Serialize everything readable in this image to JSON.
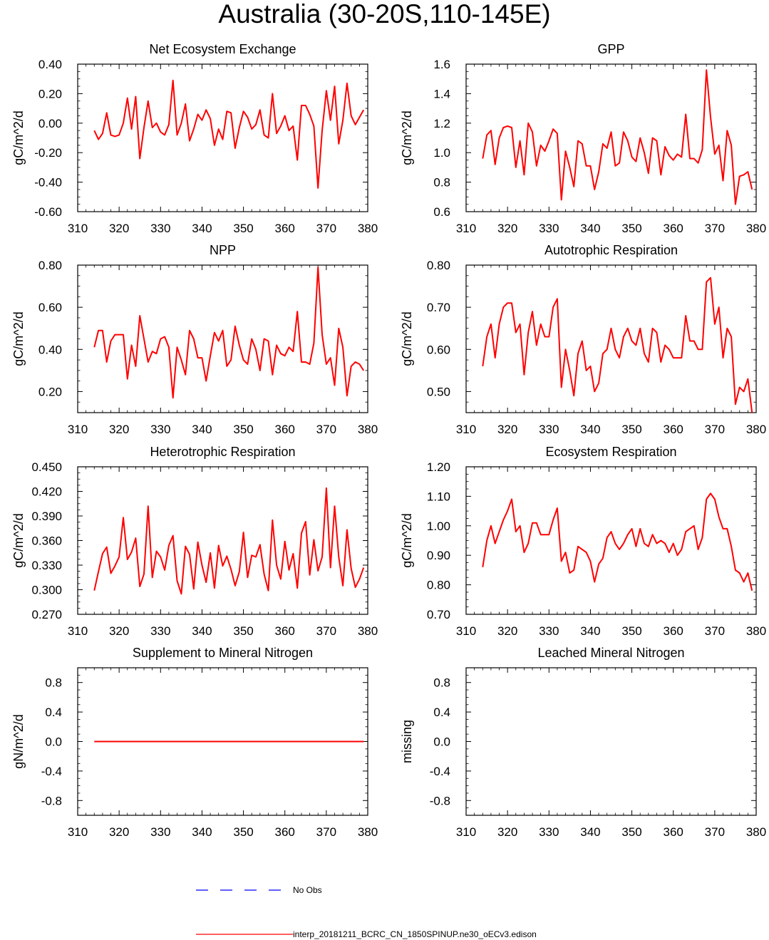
{
  "page_title": "Australia (30-20S,110-145E)",
  "colors": {
    "model": "#ff0000",
    "obs": "#0000ff",
    "axis": "#000000"
  },
  "chart_data": [
    {
      "type": "line",
      "title": "Net Ecosystem Exchange",
      "ylabel": "gC/m^2/d",
      "xlim": [
        310,
        380
      ],
      "ylim": [
        -0.6,
        0.4
      ],
      "yticks": [
        "-0.60",
        "-0.40",
        "-0.20",
        "0.00",
        "0.20",
        "0.40"
      ],
      "xticks": [
        "310",
        "320",
        "330",
        "340",
        "350",
        "360",
        "370",
        "380"
      ],
      "x_start": 314,
      "series": [
        {
          "name": "interp_20181211_BCRC_CN_1850SPINUP.ne30_oECv3.edison",
          "values": [
            -0.05,
            -0.11,
            -0.07,
            0.07,
            -0.08,
            -0.09,
            -0.08,
            0.0,
            0.17,
            -0.04,
            0.18,
            -0.24,
            -0.03,
            0.15,
            -0.03,
            0.0,
            -0.06,
            -0.08,
            -0.01,
            0.29,
            -0.08,
            0.0,
            0.13,
            -0.12,
            -0.04,
            0.06,
            0.02,
            0.09,
            0.03,
            -0.15,
            -0.04,
            -0.11,
            0.08,
            0.07,
            -0.17,
            -0.03,
            0.08,
            0.04,
            -0.04,
            -0.01,
            0.09,
            -0.08,
            -0.1,
            0.2,
            -0.07,
            -0.02,
            0.05,
            -0.05,
            -0.02,
            -0.25,
            0.12,
            0.12,
            0.06,
            -0.02,
            -0.44,
            -0.05,
            0.22,
            0.02,
            0.25,
            -0.14,
            0.02,
            0.27,
            0.05,
            -0.01,
            0.04,
            0.09
          ]
        }
      ]
    },
    {
      "type": "line",
      "title": "GPP",
      "ylabel": "gC/m^2/d",
      "xlim": [
        310,
        380
      ],
      "ylim": [
        0.6,
        1.6
      ],
      "yticks": [
        "0.6",
        "0.8",
        "1.0",
        "1.2",
        "1.4",
        "1.6"
      ],
      "xticks": [
        "310",
        "320",
        "330",
        "340",
        "350",
        "360",
        "370",
        "380"
      ],
      "x_start": 314,
      "series": [
        {
          "name": "interp_20181211_BCRC_CN_1850SPINUP.ne30_oECv3.edison",
          "values": [
            0.96,
            1.12,
            1.15,
            0.92,
            1.1,
            1.17,
            1.18,
            1.17,
            0.9,
            1.08,
            0.85,
            1.2,
            1.14,
            0.91,
            1.05,
            1.01,
            1.08,
            1.16,
            1.13,
            0.68,
            1.01,
            0.9,
            0.77,
            1.08,
            1.06,
            0.91,
            0.91,
            0.75,
            0.87,
            1.06,
            1.03,
            1.14,
            0.91,
            0.93,
            1.14,
            1.08,
            0.97,
            0.94,
            1.1,
            1.0,
            0.86,
            1.1,
            1.08,
            0.85,
            1.04,
            0.98,
            0.95,
            0.99,
            0.97,
            1.26,
            0.96,
            0.96,
            0.93,
            1.02,
            1.56,
            1.24,
            0.99,
            1.05,
            0.81,
            1.15,
            1.05,
            0.65,
            0.84,
            0.85,
            0.87,
            0.75
          ]
        }
      ]
    },
    {
      "type": "line",
      "title": "NPP",
      "ylabel": "gC/m^2/d",
      "xlim": [
        310,
        380
      ],
      "ylim": [
        0.1,
        0.8
      ],
      "yticks": [
        "0.20",
        "0.40",
        "0.60",
        "0.80"
      ],
      "xticks": [
        "310",
        "320",
        "330",
        "340",
        "350",
        "360",
        "370",
        "380"
      ],
      "x_start": 314,
      "series": [
        {
          "name": "interp_20181211_BCRC_CN_1850SPINUP.ne30_oECv3.edison",
          "values": [
            0.41,
            0.49,
            0.49,
            0.34,
            0.44,
            0.47,
            0.47,
            0.47,
            0.26,
            0.42,
            0.32,
            0.56,
            0.45,
            0.34,
            0.39,
            0.38,
            0.45,
            0.46,
            0.41,
            0.17,
            0.41,
            0.35,
            0.28,
            0.49,
            0.45,
            0.36,
            0.36,
            0.25,
            0.37,
            0.48,
            0.44,
            0.49,
            0.32,
            0.35,
            0.51,
            0.42,
            0.35,
            0.33,
            0.45,
            0.4,
            0.3,
            0.45,
            0.44,
            0.28,
            0.42,
            0.38,
            0.37,
            0.41,
            0.39,
            0.58,
            0.34,
            0.34,
            0.33,
            0.43,
            0.79,
            0.47,
            0.33,
            0.36,
            0.23,
            0.5,
            0.41,
            0.18,
            0.32,
            0.34,
            0.33,
            0.3
          ]
        }
      ]
    },
    {
      "type": "line",
      "title": "Autotrophic Respiration",
      "ylabel": "gC/m^2/d",
      "xlim": [
        310,
        380
      ],
      "ylim": [
        0.45,
        0.8
      ],
      "yticks": [
        "0.50",
        "0.60",
        "0.70",
        "0.80"
      ],
      "xticks": [
        "310",
        "320",
        "330",
        "340",
        "350",
        "360",
        "370",
        "380"
      ],
      "x_start": 314,
      "series": [
        {
          "name": "interp_20181211_BCRC_CN_1850SPINUP.ne30_oECv3.edison",
          "values": [
            0.56,
            0.63,
            0.66,
            0.58,
            0.66,
            0.7,
            0.71,
            0.71,
            0.64,
            0.66,
            0.54,
            0.64,
            0.69,
            0.61,
            0.66,
            0.63,
            0.63,
            0.7,
            0.72,
            0.51,
            0.6,
            0.55,
            0.49,
            0.59,
            0.62,
            0.55,
            0.56,
            0.5,
            0.52,
            0.59,
            0.6,
            0.65,
            0.6,
            0.58,
            0.63,
            0.65,
            0.62,
            0.61,
            0.65,
            0.59,
            0.57,
            0.65,
            0.64,
            0.57,
            0.61,
            0.6,
            0.58,
            0.58,
            0.58,
            0.68,
            0.62,
            0.62,
            0.6,
            0.6,
            0.76,
            0.77,
            0.66,
            0.7,
            0.58,
            0.65,
            0.63,
            0.47,
            0.51,
            0.5,
            0.53,
            0.45
          ]
        }
      ]
    },
    {
      "type": "line",
      "title": "Heterotrophic Respiration",
      "ylabel": "gC/m^2/d",
      "xlim": [
        310,
        380
      ],
      "ylim": [
        0.27,
        0.45
      ],
      "yticks": [
        "0.270",
        "0.300",
        "0.330",
        "0.360",
        "0.390",
        "0.420",
        "0.450"
      ],
      "xticks": [
        "310",
        "320",
        "330",
        "340",
        "350",
        "360",
        "370",
        "380"
      ],
      "x_start": 314,
      "series": [
        {
          "name": "interp_20181211_BCRC_CN_1850SPINUP.ne30_oECv3.edison",
          "values": [
            0.299,
            0.322,
            0.344,
            0.352,
            0.32,
            0.329,
            0.34,
            0.388,
            0.337,
            0.346,
            0.363,
            0.304,
            0.319,
            0.402,
            0.315,
            0.347,
            0.34,
            0.324,
            0.354,
            0.366,
            0.311,
            0.295,
            0.353,
            0.343,
            0.301,
            0.358,
            0.33,
            0.309,
            0.345,
            0.302,
            0.354,
            0.329,
            0.341,
            0.325,
            0.305,
            0.322,
            0.37,
            0.315,
            0.342,
            0.34,
            0.355,
            0.319,
            0.299,
            0.385,
            0.33,
            0.313,
            0.359,
            0.324,
            0.344,
            0.302,
            0.369,
            0.383,
            0.318,
            0.361,
            0.323,
            0.34,
            0.424,
            0.327,
            0.402,
            0.34,
            0.305,
            0.373,
            0.326,
            0.303,
            0.313,
            0.327
          ]
        }
      ]
    },
    {
      "type": "line",
      "title": "Ecosystem Respiration",
      "ylabel": "gC/m^2/d",
      "xlim": [
        310,
        380
      ],
      "ylim": [
        0.7,
        1.2
      ],
      "yticks": [
        "0.70",
        "0.80",
        "0.90",
        "1.00",
        "1.10",
        "1.20"
      ],
      "xticks": [
        "310",
        "320",
        "330",
        "340",
        "350",
        "360",
        "370",
        "380"
      ],
      "x_start": 314,
      "series": [
        {
          "name": "interp_20181211_BCRC_CN_1850SPINUP.ne30_oECv3.edison",
          "values": [
            0.86,
            0.95,
            1.0,
            0.94,
            0.98,
            1.02,
            1.05,
            1.09,
            0.98,
            1.0,
            0.91,
            0.94,
            1.01,
            1.01,
            0.97,
            0.97,
            0.97,
            1.02,
            1.06,
            0.88,
            0.91,
            0.84,
            0.85,
            0.93,
            0.92,
            0.91,
            0.88,
            0.81,
            0.87,
            0.89,
            0.96,
            0.98,
            0.94,
            0.92,
            0.94,
            0.97,
            0.99,
            0.93,
            0.99,
            0.94,
            0.93,
            0.97,
            0.94,
            0.95,
            0.94,
            0.91,
            0.94,
            0.9,
            0.92,
            0.98,
            0.99,
            1.0,
            0.92,
            0.96,
            1.09,
            1.11,
            1.09,
            1.03,
            0.99,
            0.99,
            0.93,
            0.85,
            0.84,
            0.81,
            0.84,
            0.78
          ]
        }
      ]
    },
    {
      "type": "line",
      "title": "Supplement to Mineral Nitrogen",
      "ylabel": "gN/m^2/d",
      "xlim": [
        310,
        380
      ],
      "ylim": [
        -1.0,
        1.0
      ],
      "yticks": [
        "-0.8",
        "-0.4",
        "0.0",
        "0.4",
        "0.8"
      ],
      "xticks": [
        "310",
        "320",
        "330",
        "340",
        "350",
        "360",
        "370",
        "380"
      ],
      "x_start": 314,
      "series": [
        {
          "name": "interp_20181211_BCRC_CN_1850SPINUP.ne30_oECv3.edison",
          "values": [
            0,
            0,
            0,
            0,
            0,
            0,
            0,
            0,
            0,
            0,
            0,
            0,
            0,
            0,
            0,
            0,
            0,
            0,
            0,
            0,
            0,
            0,
            0,
            0,
            0,
            0,
            0,
            0,
            0,
            0,
            0,
            0,
            0,
            0,
            0,
            0,
            0,
            0,
            0,
            0,
            0,
            0,
            0,
            0,
            0,
            0,
            0,
            0,
            0,
            0,
            0,
            0,
            0,
            0,
            0,
            0,
            0,
            0,
            0,
            0,
            0,
            0,
            0,
            0,
            0,
            0
          ]
        }
      ]
    },
    {
      "type": "line",
      "title": "Leached Mineral Nitrogen",
      "ylabel": "missing",
      "xlim": [
        310,
        380
      ],
      "ylim": [
        -1.0,
        1.0
      ],
      "yticks": [
        "-0.8",
        "-0.4",
        "0.0",
        "0.4",
        "0.8"
      ],
      "xticks": [
        "310",
        "320",
        "330",
        "340",
        "350",
        "360",
        "370",
        "380"
      ],
      "x_start": 314,
      "series": []
    }
  ],
  "legend": {
    "obs_label": "No Obs",
    "model_label": "interp_20181211_BCRC_CN_1850SPINUP.ne30_oECv3.edison"
  }
}
